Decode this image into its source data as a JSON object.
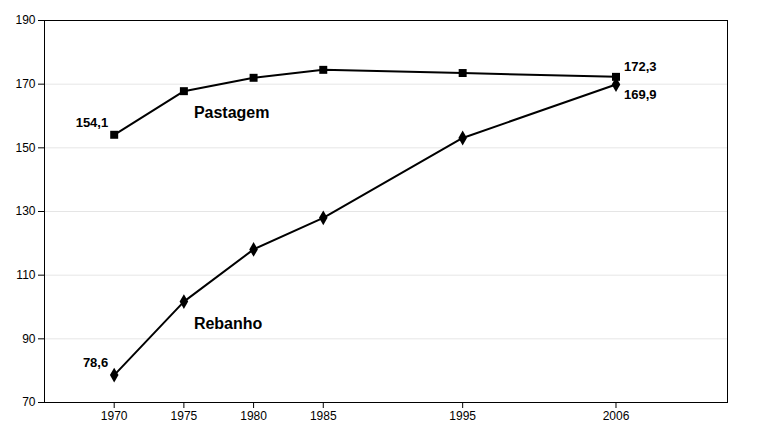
{
  "chart_data": {
    "type": "line",
    "x": [
      1970,
      1975,
      1980,
      1985,
      1995,
      2006
    ],
    "series": [
      {
        "name": "Pastagem",
        "marker": "square",
        "values": [
          154.1,
          167.8,
          172.0,
          174.5,
          173.5,
          172.3
        ],
        "value_labels": [
          "154,1",
          null,
          null,
          null,
          null,
          "172,3"
        ]
      },
      {
        "name": "Rebanho",
        "marker": "diamond",
        "values": [
          78.6,
          101.7,
          118.1,
          128.0,
          153.1,
          169.9
        ],
        "value_labels": [
          "78,6",
          null,
          null,
          null,
          null,
          "169,9"
        ]
      }
    ],
    "xlim": [
      1965,
      2014
    ],
    "xticks": [
      1970,
      1975,
      1980,
      1985,
      1995,
      2006
    ],
    "ylim": [
      70,
      190
    ],
    "yticks": [
      70,
      90,
      110,
      130,
      150,
      170,
      190
    ],
    "grid": "y",
    "data_labels": true
  }
}
